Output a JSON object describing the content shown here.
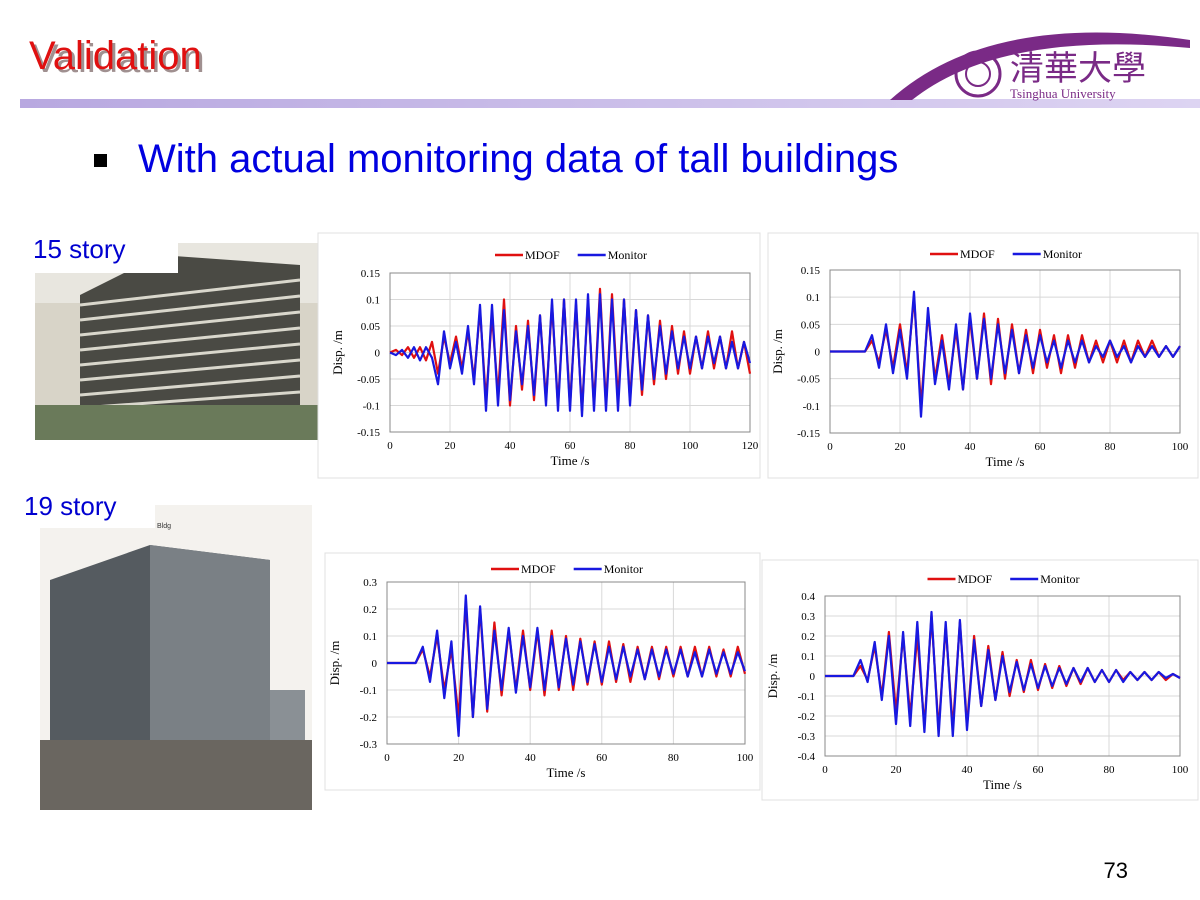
{
  "header": {
    "title": "Validation",
    "logo_chinese": "清華大學",
    "logo_english": "Tsinghua University"
  },
  "bullet": "With actual monitoring data of tall buildings",
  "photos": [
    {
      "label": "15 story"
    },
    {
      "label": "19 story",
      "sign": "Bldg"
    }
  ],
  "page_number": "73",
  "chart_data": [
    {
      "type": "line",
      "x_label": "Time /s",
      "y_label": "Disp. /m",
      "xlim": [
        0,
        120
      ],
      "xticks": [
        0,
        20,
        40,
        60,
        80,
        100,
        120
      ],
      "ylim": [
        -0.15,
        0.15
      ],
      "yticks": [
        -0.15,
        -0.1,
        -0.05,
        0,
        0.05,
        0.1,
        0.15
      ],
      "grid": true,
      "x": [
        0,
        2,
        4,
        6,
        8,
        10,
        12,
        14,
        16,
        18,
        20,
        22,
        24,
        26,
        28,
        30,
        32,
        34,
        36,
        38,
        40,
        42,
        44,
        46,
        48,
        50,
        52,
        54,
        56,
        58,
        60,
        62,
        64,
        66,
        68,
        70,
        72,
        74,
        76,
        78,
        80,
        82,
        84,
        86,
        88,
        90,
        92,
        94,
        96,
        98,
        100,
        102,
        104,
        106,
        108,
        110,
        112,
        114,
        116,
        118,
        120
      ],
      "series": [
        {
          "name": "MDOF",
          "color": "#e01010",
          "values": [
            0,
            0.005,
            -0.005,
            0.01,
            -0.01,
            0.01,
            -0.015,
            0.02,
            -0.04,
            0.03,
            -0.02,
            0.03,
            -0.03,
            0.04,
            -0.05,
            0.08,
            -0.09,
            0.07,
            -0.08,
            0.1,
            -0.1,
            0.05,
            -0.07,
            0.06,
            -0.09,
            0.07,
            -0.09,
            0.09,
            -0.1,
            0.1,
            -0.1,
            0.09,
            -0.11,
            0.1,
            -0.1,
            0.12,
            -0.1,
            0.11,
            -0.09,
            0.1,
            -0.09,
            0.08,
            -0.08,
            0.07,
            -0.06,
            0.06,
            -0.05,
            0.05,
            -0.04,
            0.04,
            -0.04,
            0.03,
            -0.03,
            0.04,
            -0.03,
            0.03,
            -0.03,
            0.04,
            -0.03,
            0.02,
            -0.04
          ]
        },
        {
          "name": "Monitor",
          "color": "#1818e0",
          "values": [
            0,
            -0.005,
            0.005,
            -0.01,
            0.01,
            -0.015,
            0.01,
            -0.01,
            -0.06,
            0.04,
            -0.03,
            0.02,
            -0.04,
            0.05,
            -0.06,
            0.09,
            -0.11,
            0.09,
            -0.1,
            0.08,
            -0.09,
            0.04,
            -0.06,
            0.05,
            -0.08,
            0.07,
            -0.1,
            0.1,
            -0.11,
            0.1,
            -0.11,
            0.1,
            -0.12,
            0.11,
            -0.11,
            0.11,
            -0.11,
            0.1,
            -0.11,
            0.1,
            -0.1,
            0.08,
            -0.07,
            0.07,
            -0.05,
            0.05,
            -0.04,
            0.04,
            -0.03,
            0.03,
            -0.03,
            0.03,
            -0.03,
            0.03,
            -0.02,
            0.03,
            -0.03,
            0.02,
            -0.03,
            0.02,
            -0.02
          ]
        }
      ]
    },
    {
      "type": "line",
      "x_label": "Time /s",
      "y_label": "Disp. /m",
      "xlim": [
        0,
        100
      ],
      "xticks": [
        0,
        20,
        40,
        60,
        80,
        100
      ],
      "ylim": [
        -0.15,
        0.15
      ],
      "yticks": [
        -0.15,
        -0.1,
        -0.05,
        0,
        0.05,
        0.1,
        0.15
      ],
      "grid": true,
      "x": [
        0,
        2,
        4,
        6,
        8,
        10,
        12,
        14,
        16,
        18,
        20,
        22,
        24,
        26,
        28,
        30,
        32,
        34,
        36,
        38,
        40,
        42,
        44,
        46,
        48,
        50,
        52,
        54,
        56,
        58,
        60,
        62,
        64,
        66,
        68,
        70,
        72,
        74,
        76,
        78,
        80,
        82,
        84,
        86,
        88,
        90,
        92,
        94,
        96,
        98,
        100
      ],
      "series": [
        {
          "name": "MDOF",
          "color": "#e01010",
          "values": [
            0,
            0,
            0,
            0,
            0,
            0,
            0.02,
            -0.02,
            0.04,
            -0.03,
            0.05,
            -0.04,
            0.1,
            -0.1,
            0.07,
            -0.05,
            0.03,
            -0.06,
            0.04,
            -0.07,
            0.06,
            -0.05,
            0.07,
            -0.06,
            0.06,
            -0.05,
            0.05,
            -0.04,
            0.04,
            -0.04,
            0.04,
            -0.03,
            0.03,
            -0.04,
            0.03,
            -0.03,
            0.03,
            -0.02,
            0.02,
            -0.02,
            0.02,
            -0.02,
            0.02,
            -0.02,
            0.02,
            -0.01,
            0.02,
            -0.01,
            0.01,
            -0.01,
            0.01
          ]
        },
        {
          "name": "Monitor",
          "color": "#1818e0",
          "values": [
            0,
            0,
            0,
            0,
            0,
            0,
            0.03,
            -0.03,
            0.05,
            -0.04,
            0.04,
            -0.05,
            0.11,
            -0.12,
            0.08,
            -0.06,
            0.02,
            -0.07,
            0.05,
            -0.07,
            0.07,
            -0.05,
            0.06,
            -0.05,
            0.05,
            -0.04,
            0.04,
            -0.04,
            0.03,
            -0.03,
            0.03,
            -0.02,
            0.02,
            -0.03,
            0.02,
            -0.02,
            0.02,
            -0.02,
            0.01,
            -0.01,
            0.02,
            -0.01,
            0.01,
            -0.02,
            0.01,
            -0.01,
            0.01,
            -0.01,
            0.01,
            -0.01,
            0.01
          ]
        }
      ]
    },
    {
      "type": "line",
      "x_label": "Time /s",
      "y_label": "Disp. /m",
      "xlim": [
        0,
        100
      ],
      "xticks": [
        0,
        20,
        40,
        60,
        80,
        100
      ],
      "ylim": [
        -0.3,
        0.3
      ],
      "yticks": [
        -0.3,
        -0.2,
        -0.1,
        0,
        0.1,
        0.2,
        0.3
      ],
      "grid": true,
      "x": [
        0,
        2,
        4,
        6,
        8,
        10,
        12,
        14,
        16,
        18,
        20,
        22,
        24,
        26,
        28,
        30,
        32,
        34,
        36,
        38,
        40,
        42,
        44,
        46,
        48,
        50,
        52,
        54,
        56,
        58,
        60,
        62,
        64,
        66,
        68,
        70,
        72,
        74,
        76,
        78,
        80,
        82,
        84,
        86,
        88,
        90,
        92,
        94,
        96,
        98,
        100
      ],
      "series": [
        {
          "name": "MDOF",
          "color": "#e01010",
          "values": [
            0,
            0,
            0,
            0,
            0,
            0.05,
            -0.05,
            0.1,
            -0.1,
            0.05,
            -0.2,
            0.22,
            -0.2,
            0.2,
            -0.18,
            0.15,
            -0.12,
            0.12,
            -0.1,
            0.12,
            -0.1,
            0.12,
            -0.12,
            0.12,
            -0.1,
            0.1,
            -0.1,
            0.09,
            -0.08,
            0.08,
            -0.08,
            0.08,
            -0.07,
            0.07,
            -0.07,
            0.06,
            -0.06,
            0.06,
            -0.06,
            0.06,
            -0.05,
            0.06,
            -0.05,
            0.06,
            -0.05,
            0.06,
            -0.05,
            0.05,
            -0.05,
            0.06,
            -0.04
          ]
        },
        {
          "name": "Monitor",
          "color": "#1818e0",
          "values": [
            0,
            0,
            0,
            0,
            0,
            0.06,
            -0.07,
            0.12,
            -0.13,
            0.08,
            -0.27,
            0.25,
            -0.2,
            0.21,
            -0.17,
            0.12,
            -0.1,
            0.13,
            -0.11,
            0.1,
            -0.09,
            0.13,
            -0.1,
            0.1,
            -0.09,
            0.09,
            -0.08,
            0.08,
            -0.07,
            0.07,
            -0.07,
            0.06,
            -0.06,
            0.06,
            -0.05,
            0.05,
            -0.06,
            0.05,
            -0.05,
            0.05,
            -0.04,
            0.05,
            -0.05,
            0.04,
            -0.05,
            0.05,
            -0.04,
            0.04,
            -0.04,
            0.04,
            -0.03
          ]
        }
      ]
    },
    {
      "type": "line",
      "x_label": "Time /s",
      "y_label": "Disp. /m",
      "xlim": [
        0,
        100
      ],
      "xticks": [
        0,
        20,
        40,
        60,
        80,
        100
      ],
      "ylim": [
        -0.4,
        0.4
      ],
      "yticks": [
        -0.4,
        -0.3,
        -0.2,
        -0.1,
        0,
        0.1,
        0.2,
        0.3,
        0.4
      ],
      "grid": true,
      "x": [
        0,
        2,
        4,
        6,
        8,
        10,
        12,
        14,
        16,
        18,
        20,
        22,
        24,
        26,
        28,
        30,
        32,
        34,
        36,
        38,
        40,
        42,
        44,
        46,
        48,
        50,
        52,
        54,
        56,
        58,
        60,
        62,
        64,
        66,
        68,
        70,
        72,
        74,
        76,
        78,
        80,
        82,
        84,
        86,
        88,
        90,
        92,
        94,
        96,
        98,
        100
      ],
      "series": [
        {
          "name": "MDOF",
          "color": "#e01010",
          "values": [
            0,
            0,
            0,
            0,
            0,
            0.05,
            -0.02,
            0.15,
            -0.1,
            0.22,
            -0.18,
            0.2,
            -0.2,
            0.2,
            -0.25,
            0.3,
            -0.27,
            0.25,
            -0.26,
            0.27,
            -0.25,
            0.2,
            -0.15,
            0.15,
            -0.12,
            0.12,
            -0.1,
            0.08,
            -0.08,
            0.08,
            -0.07,
            0.06,
            -0.06,
            0.05,
            -0.05,
            0.04,
            -0.04,
            0.04,
            -0.03,
            0.03,
            -0.03,
            0.03,
            -0.02,
            0.02,
            -0.02,
            0.02,
            -0.02,
            0.02,
            -0.02,
            0.01,
            -0.01
          ]
        },
        {
          "name": "Monitor",
          "color": "#1818e0",
          "values": [
            0,
            0,
            0,
            0,
            0,
            0.08,
            -0.03,
            0.17,
            -0.12,
            0.2,
            -0.24,
            0.22,
            -0.25,
            0.27,
            -0.28,
            0.32,
            -0.3,
            0.27,
            -0.3,
            0.28,
            -0.27,
            0.18,
            -0.15,
            0.13,
            -0.12,
            0.1,
            -0.08,
            0.07,
            -0.07,
            0.06,
            -0.06,
            0.05,
            -0.05,
            0.04,
            -0.04,
            0.04,
            -0.03,
            0.04,
            -0.03,
            0.03,
            -0.03,
            0.03,
            -0.03,
            0.02,
            -0.02,
            0.02,
            -0.02,
            0.02,
            -0.01,
            0.01,
            -0.01
          ]
        }
      ]
    }
  ]
}
